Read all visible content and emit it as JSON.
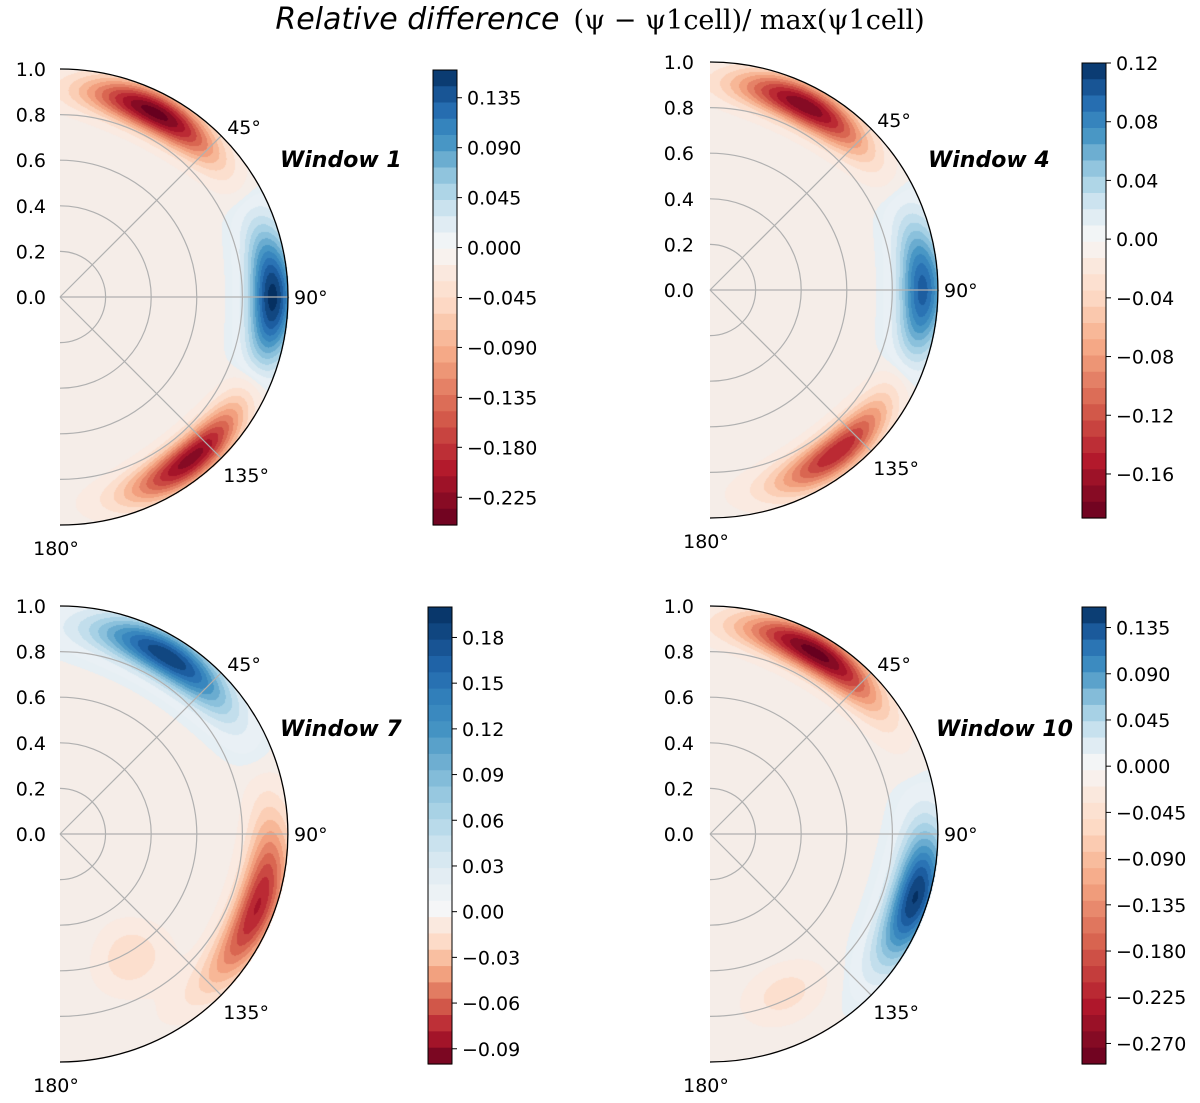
{
  "figure": {
    "title": "Relative difference",
    "formula": "(ψ − ψ1cell)/ max(ψ1cell)"
  },
  "colors": {
    "max_blue": "#053061",
    "blues": [
      "#f7f7f7",
      "#e6eff4",
      "#d1e5f0",
      "#b2d7e8",
      "#92c5de",
      "#6aacd0",
      "#4393c3",
      "#3280bb",
      "#2166ac",
      "#134b87",
      "#053061"
    ],
    "reds": [
      "#f7f7f7",
      "#fae7dc",
      "#fddbc7",
      "#f9c0a2",
      "#f4a582",
      "#e58267",
      "#d6604d",
      "#c43c3c",
      "#b2182b",
      "#8c0d25",
      "#67001f"
    ],
    "center": "#f5ede8",
    "grid": "#b0b0b0"
  },
  "chart_data": [
    {
      "type": "contour-polar",
      "title": "Window 1",
      "theta_range_deg": [
        0,
        180
      ],
      "r_range": [
        0.0,
        1.0
      ],
      "r_ticks": [
        "1.0",
        "0.8",
        "0.6",
        "0.4",
        "0.2",
        "0.0"
      ],
      "theta_ticks": [
        "45°",
        "90°",
        "135°",
        "180°"
      ],
      "colorbar": {
        "vmin": -0.25,
        "vmax": 0.16,
        "ticks": [
          0.135,
          0.09,
          0.045,
          0.0,
          -0.045,
          -0.09,
          -0.135,
          -0.18,
          -0.225
        ],
        "tick_labels": [
          "0.135",
          "0.090",
          "0.045",
          "0.000",
          "−0.045",
          "−0.090",
          "−0.135",
          "−0.180",
          "−0.225"
        ]
      },
      "features": [
        {
          "theta_deg": 27,
          "r": 0.91,
          "value": -0.25,
          "theta_spread_deg": 14,
          "r_spread": 0.065
        },
        {
          "theta_deg": 141,
          "r": 0.91,
          "value": -0.23,
          "theta_spread_deg": 14,
          "r_spread": 0.065
        },
        {
          "theta_deg": 90,
          "r": 0.93,
          "value": 0.16,
          "theta_spread_deg": 13,
          "r_spread": 0.07
        }
      ]
    },
    {
      "type": "contour-polar",
      "title": "Window 4",
      "theta_range_deg": [
        0,
        180
      ],
      "r_range": [
        0.0,
        1.0
      ],
      "r_ticks": [
        "1.0",
        "0.8",
        "0.6",
        "0.4",
        "0.2",
        "0.0"
      ],
      "theta_ticks": [
        "45°",
        "90°",
        "135°",
        "180°"
      ],
      "colorbar": {
        "vmin": -0.19,
        "vmax": 0.12,
        "ticks": [
          0.12,
          0.08,
          0.04,
          0.0,
          -0.04,
          -0.08,
          -0.12,
          -0.16
        ],
        "tick_labels": [
          "0.12",
          "0.08",
          "0.04",
          "0.00",
          "−0.04",
          "−0.08",
          "−0.12",
          "−0.16"
        ]
      },
      "features": [
        {
          "theta_deg": 27,
          "r": 0.91,
          "value": -0.18,
          "theta_spread_deg": 14,
          "r_spread": 0.065
        },
        {
          "theta_deg": 142,
          "r": 0.9,
          "value": -0.15,
          "theta_spread_deg": 14,
          "r_spread": 0.065
        },
        {
          "theta_deg": 90,
          "r": 0.93,
          "value": 0.1,
          "theta_spread_deg": 13,
          "r_spread": 0.07
        }
      ]
    },
    {
      "type": "contour-polar",
      "title": "Window 7",
      "theta_range_deg": [
        0,
        180
      ],
      "r_range": [
        0.0,
        1.0
      ],
      "r_ticks": [
        "1.0",
        "0.8",
        "0.6",
        "0.4",
        "0.2",
        "0.0"
      ],
      "theta_ticks": [
        "45°",
        "90°",
        "135°",
        "180°"
      ],
      "colorbar": {
        "vmin": -0.1,
        "vmax": 0.2,
        "ticks": [
          0.18,
          0.15,
          0.12,
          0.09,
          0.06,
          0.03,
          0.0,
          -0.03,
          -0.06,
          -0.09
        ],
        "tick_labels": [
          "0.18",
          "0.15",
          "0.12",
          "0.09",
          "0.06",
          "0.03",
          "0.00",
          "−0.03",
          "−0.06",
          "−0.09"
        ]
      },
      "features": [
        {
          "theta_deg": 31,
          "r": 0.91,
          "value": 0.19,
          "theta_spread_deg": 15,
          "r_spread": 0.07
        },
        {
          "theta_deg": 110,
          "r": 0.92,
          "value": -0.08,
          "theta_spread_deg": 17,
          "r_spread": 0.07
        },
        {
          "theta_deg": 150,
          "r": 0.62,
          "value": -0.02,
          "theta_spread_deg": 10,
          "r_spread": 0.1
        }
      ]
    },
    {
      "type": "contour-polar",
      "title": "Window 10",
      "theta_range_deg": [
        0,
        180
      ],
      "r_range": [
        0.0,
        1.0
      ],
      "r_ticks": [
        "1.0",
        "0.8",
        "0.6",
        "0.4",
        "0.2",
        "0.0"
      ],
      "theta_ticks": [
        "45°",
        "90°",
        "135°",
        "180°"
      ],
      "colorbar": {
        "vmin": -0.29,
        "vmax": 0.155,
        "ticks": [
          0.135,
          0.09,
          0.045,
          0.0,
          -0.045,
          -0.09,
          -0.135,
          -0.18,
          -0.225,
          -0.27
        ],
        "tick_labels": [
          "0.135",
          "0.090",
          "0.045",
          "0.000",
          "−0.045",
          "−0.090",
          "−0.135",
          "−0.180",
          "−0.225",
          "−0.270"
        ]
      },
      "features": [
        {
          "theta_deg": 30,
          "r": 0.92,
          "value": -0.29,
          "theta_spread_deg": 15,
          "r_spread": 0.065
        },
        {
          "theta_deg": 107,
          "r": 0.94,
          "value": 0.15,
          "theta_spread_deg": 13,
          "r_spread": 0.075
        },
        {
          "theta_deg": 155,
          "r": 0.77,
          "value": -0.05,
          "theta_spread_deg": 9,
          "r_spread": 0.08
        }
      ]
    }
  ]
}
